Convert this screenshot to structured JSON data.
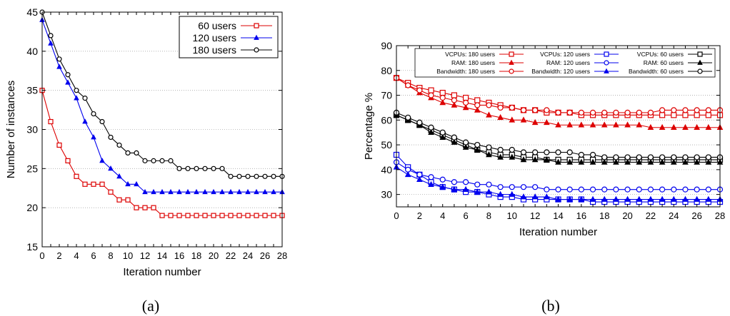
{
  "captions": {
    "a": "(a)",
    "b": "(b)"
  },
  "chart_data": [
    {
      "type": "line",
      "title": "",
      "xlabel": "Iteration number",
      "ylabel": "Number of instances",
      "xlim": [
        0,
        28
      ],
      "ylim": [
        15,
        45
      ],
      "xticks": [
        0,
        2,
        4,
        6,
        8,
        10,
        12,
        14,
        16,
        18,
        20,
        22,
        24,
        26,
        28
      ],
      "yticks": [
        15,
        20,
        25,
        30,
        35,
        40,
        45
      ],
      "grid": "horizontal",
      "legend_position": "top-right",
      "x": [
        0,
        1,
        2,
        3,
        4,
        5,
        6,
        7,
        8,
        9,
        10,
        11,
        12,
        13,
        14,
        15,
        16,
        17,
        18,
        19,
        20,
        21,
        22,
        23,
        24,
        25,
        26,
        27,
        28
      ],
      "series": [
        {
          "name": "60 users",
          "color": "#dd0000",
          "marker": "square",
          "values": [
            35,
            31,
            28,
            26,
            24,
            23,
            23,
            23,
            22,
            21,
            21,
            20,
            20,
            20,
            19,
            19,
            19,
            19,
            19,
            19,
            19,
            19,
            19,
            19,
            19,
            19,
            19,
            19,
            19
          ]
        },
        {
          "name": "120 users",
          "color": "#0000ee",
          "marker": "triangle",
          "values": [
            44,
            41,
            38,
            36,
            34,
            31,
            29,
            26,
            25,
            24,
            23,
            23,
            22,
            22,
            22,
            22,
            22,
            22,
            22,
            22,
            22,
            22,
            22,
            22,
            22,
            22,
            22,
            22,
            22
          ]
        },
        {
          "name": "180 users",
          "color": "#000000",
          "marker": "circle",
          "values": [
            45,
            42,
            39,
            37,
            35,
            34,
            32,
            31,
            29,
            28,
            27,
            27,
            26,
            26,
            26,
            26,
            25,
            25,
            25,
            25,
            25,
            25,
            24,
            24,
            24,
            24,
            24,
            24,
            24
          ]
        }
      ]
    },
    {
      "type": "line",
      "title": "",
      "xlabel": "Iteration number",
      "ylabel": "Percentage %",
      "xlim": [
        0,
        28
      ],
      "ylim": [
        25,
        90
      ],
      "xticks": [
        0,
        2,
        4,
        6,
        8,
        10,
        12,
        14,
        16,
        18,
        20,
        22,
        24,
        26,
        28
      ],
      "yticks": [
        30,
        40,
        50,
        60,
        70,
        80,
        90
      ],
      "grid": "horizontal",
      "legend_position": "top",
      "x": [
        0,
        1,
        2,
        3,
        4,
        5,
        6,
        7,
        8,
        9,
        10,
        11,
        12,
        13,
        14,
        15,
        16,
        17,
        18,
        19,
        20,
        21,
        22,
        23,
        24,
        25,
        26,
        27,
        28
      ],
      "series": [
        {
          "name": "VCPUs: 180 users",
          "color": "#dd0000",
          "marker": "square",
          "values": [
            77,
            75,
            73,
            72,
            71,
            70,
            69,
            68,
            67,
            66,
            65,
            64,
            64,
            63,
            63,
            63,
            62,
            62,
            62,
            62,
            62,
            62,
            62,
            62,
            62,
            62,
            62,
            62,
            62
          ]
        },
        {
          "name": "RAM: 180 users",
          "color": "#dd0000",
          "marker": "triangle",
          "values": [
            77,
            74,
            71,
            69,
            67,
            66,
            65,
            64,
            62,
            61,
            60,
            60,
            59,
            59,
            58,
            58,
            58,
            58,
            58,
            58,
            58,
            58,
            57,
            57,
            57,
            57,
            57,
            57,
            57
          ]
        },
        {
          "name": "Bandwidth: 180 users",
          "color": "#dd0000",
          "marker": "circle",
          "values": [
            77,
            74,
            72,
            70,
            69,
            68,
            67,
            66,
            66,
            65,
            65,
            64,
            64,
            64,
            63,
            63,
            63,
            63,
            63,
            63,
            63,
            63,
            63,
            64,
            64,
            64,
            64,
            64,
            64
          ]
        },
        {
          "name": "VCPUs: 120 users",
          "color": "#0000ee",
          "marker": "square",
          "values": [
            46,
            41,
            38,
            35,
            33,
            32,
            31,
            31,
            30,
            29,
            29,
            28,
            28,
            28,
            28,
            28,
            28,
            27,
            27,
            27,
            27,
            27,
            27,
            27,
            27,
            27,
            27,
            27,
            27
          ]
        },
        {
          "name": "RAM: 120 users",
          "color": "#0000ee",
          "marker": "circle",
          "values": [
            43,
            40,
            38,
            37,
            36,
            35,
            35,
            34,
            34,
            33,
            33,
            33,
            33,
            32,
            32,
            32,
            32,
            32,
            32,
            32,
            32,
            32,
            32,
            32,
            32,
            32,
            32,
            32,
            32
          ]
        },
        {
          "name": "Bandwidth: 120 users",
          "color": "#0000ee",
          "marker": "triangle",
          "values": [
            41,
            38,
            36,
            34,
            33,
            32,
            32,
            31,
            31,
            30,
            30,
            29,
            29,
            29,
            28,
            28,
            28,
            28,
            28,
            28,
            28,
            28,
            28,
            28,
            28,
            28,
            28,
            28,
            28
          ]
        },
        {
          "name": "VCPUs: 60 users",
          "color": "#000000",
          "marker": "square",
          "values": [
            62,
            60,
            58,
            56,
            54,
            52,
            50,
            48,
            47,
            46,
            46,
            45,
            45,
            44,
            44,
            44,
            44,
            44,
            44,
            44,
            44,
            44,
            44,
            44,
            44,
            44,
            44,
            44,
            44
          ]
        },
        {
          "name": "RAM: 60 users",
          "color": "#000000",
          "marker": "triangle",
          "values": [
            62,
            60,
            58,
            55,
            53,
            51,
            49,
            48,
            46,
            45,
            45,
            44,
            44,
            44,
            43,
            43,
            43,
            43,
            43,
            43,
            43,
            43,
            43,
            43,
            43,
            43,
            43,
            43,
            43
          ]
        },
        {
          "name": "Bandwidth: 60 users",
          "color": "#000000",
          "marker": "circle",
          "values": [
            63,
            61,
            59,
            57,
            55,
            53,
            51,
            50,
            49,
            48,
            48,
            47,
            47,
            47,
            47,
            47,
            46,
            46,
            45,
            45,
            45,
            45,
            45,
            45,
            45,
            45,
            45,
            45,
            45
          ]
        }
      ]
    }
  ]
}
